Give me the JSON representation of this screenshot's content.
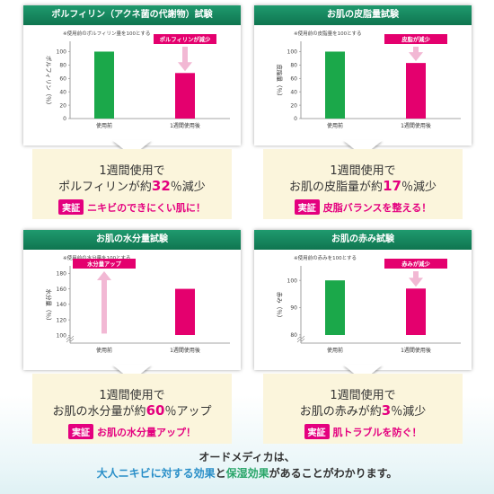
{
  "chart_data": [
    {
      "type": "bar",
      "title": "ポルフィリン（アクネ菌の代謝物）試験",
      "note": "※使用前のポルフィリン量を100とする",
      "ylabel": "ポルフィリン（％）",
      "categories": [
        "使用前",
        "1週間使用後"
      ],
      "values": [
        100,
        68
      ],
      "yticks": [
        0,
        20,
        40,
        60,
        80,
        100
      ],
      "ylim": [
        0,
        110
      ],
      "axis_break": false,
      "colors": [
        "#1ba84a",
        "#e4006e"
      ],
      "callout": "ポルフィリンが減少",
      "arrow": "down",
      "result_prefix": "1週間使用で",
      "result_main_pre": "ポルフィリンが約",
      "result_value": "32",
      "result_main_post": "％減少",
      "verify_badge": "実証",
      "verify_text": "ニキビのできにくい肌に！"
    },
    {
      "type": "bar",
      "title": "お肌の皮脂量試験",
      "note": "※使用前の皮脂量を100とする",
      "ylabel": "皮脂量（％）",
      "categories": [
        "使用前",
        "1週間使用後"
      ],
      "values": [
        100,
        83
      ],
      "yticks": [
        0,
        20,
        40,
        60,
        80,
        100
      ],
      "ylim": [
        0,
        110
      ],
      "axis_break": false,
      "colors": [
        "#1ba84a",
        "#e4006e"
      ],
      "callout": "皮脂が減少",
      "arrow": "down",
      "result_prefix": "1週間使用で",
      "result_main_pre": "お肌の皮脂量が約",
      "result_value": "17",
      "result_main_post": "％減少",
      "verify_badge": "実証",
      "verify_text": "皮脂バランスを整える！"
    },
    {
      "type": "bar",
      "title": "お肌の水分量試験",
      "note": "※使用前の水分量を100とする",
      "ylabel": "水分量（％）",
      "categories": [
        "使用前",
        "1週間使用後"
      ],
      "values": [
        100,
        160
      ],
      "yticks": [
        100,
        120,
        140,
        160,
        180
      ],
      "ylim": [
        90,
        185
      ],
      "axis_break": true,
      "colors": [
        "#1ba84a",
        "#e4006e"
      ],
      "callout": "水分量アップ",
      "arrow": "up",
      "result_prefix": "1週間使用で",
      "result_main_pre": "お肌の水分量が約",
      "result_value": "60",
      "result_main_post": "％アップ",
      "verify_badge": "実証",
      "verify_text": "お肌の水分量アップ！"
    },
    {
      "type": "bar",
      "title": "お肌の赤み試験",
      "note": "※使用前の赤みを100とする",
      "ylabel": "赤み（％）",
      "categories": [
        "使用前",
        "1週間使用後"
      ],
      "values": [
        100,
        97
      ],
      "yticks": [
        80,
        90,
        100
      ],
      "ylim": [
        77,
        104
      ],
      "axis_break": true,
      "colors": [
        "#1ba84a",
        "#e4006e"
      ],
      "callout": "赤みが減少",
      "arrow": "down",
      "result_prefix": "1週間使用で",
      "result_main_pre": "お肌の赤みが約",
      "result_value": "3",
      "result_main_post": "％減少",
      "verify_badge": "実証",
      "verify_text": "肌トラブルを防ぐ！"
    }
  ],
  "footer": {
    "line1": "オードメディカは、",
    "line2_a": "大人ニキビに対する効果",
    "line2_b": "と",
    "line2_c": "保湿効果",
    "line2_d": "があることがわかります。"
  }
}
